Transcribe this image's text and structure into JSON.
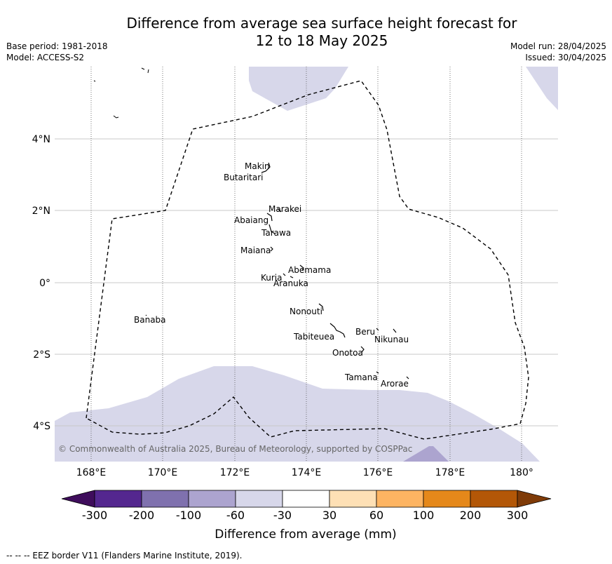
{
  "title": {
    "line1": "Difference from average sea surface height forecast for",
    "line2": "12 to 18 May 2025"
  },
  "meta": {
    "base_period": "Base period: 1981-2018",
    "model": "Model: ACCESS-S2",
    "model_run": "Model run: 28/04/2025",
    "issued": "Issued: 30/04/2025"
  },
  "map": {
    "lon_ticks": [
      "168°E",
      "170°E",
      "172°E",
      "174°E",
      "176°E",
      "178°E",
      "180°"
    ],
    "lat_ticks": [
      "4°N",
      "2°N",
      "0°",
      "2°S",
      "4°S"
    ],
    "copyright": "© Commonwealth of Australia 2025, Bureau of Meteorology, supported by COSPPac",
    "islands": [
      {
        "name": "Makin",
        "lon": 172.95,
        "lat": 3.1
      },
      {
        "name": "Butaritari",
        "lon": 172.85,
        "lat": 3.0
      },
      {
        "name": "Marakei",
        "lon": 173.2,
        "lat": 2.0
      },
      {
        "name": "Abaiang",
        "lon": 172.9,
        "lat": 1.8
      },
      {
        "name": "Tarawa",
        "lon": 173.0,
        "lat": 1.4
      },
      {
        "name": "Maiana",
        "lon": 173.0,
        "lat": 1.0
      },
      {
        "name": "Abemama",
        "lon": 173.85,
        "lat": 0.45
      },
      {
        "name": "Kuria",
        "lon": 173.4,
        "lat": 0.23
      },
      {
        "name": "Aranuka",
        "lon": 173.6,
        "lat": 0.17
      },
      {
        "name": "Banaba",
        "lon": 169.5,
        "lat": -0.85
      },
      {
        "name": "Nonouti",
        "lon": 174.4,
        "lat": -0.65
      },
      {
        "name": "Tabiteuea",
        "lon": 174.8,
        "lat": -1.3
      },
      {
        "name": "Beru",
        "lon": 176.0,
        "lat": -1.35
      },
      {
        "name": "Nikunau",
        "lon": 176.45,
        "lat": -1.35
      },
      {
        "name": "Onotoa",
        "lon": 175.55,
        "lat": -1.8
      },
      {
        "name": "Tamana",
        "lon": 175.97,
        "lat": -2.5
      },
      {
        "name": "Arorae",
        "lon": 176.82,
        "lat": -2.65
      }
    ]
  },
  "colorbar": {
    "labels": [
      "-300",
      "-200",
      "-100",
      "-60",
      "-30",
      "30",
      "60",
      "100",
      "200",
      "300"
    ],
    "colors": [
      "#3f0d5c",
      "#54278f",
      "#7f71ae",
      "#aca4cf",
      "#d7d7ea",
      "#ffffff",
      "#fee0b5",
      "#fdb462",
      "#e5881a",
      "#b35707",
      "#7f3b08"
    ],
    "title": "Difference from average (mm)"
  },
  "footer": "--  --  -- EEZ border V11 (Flanders Marine Institute, 2019)."
}
